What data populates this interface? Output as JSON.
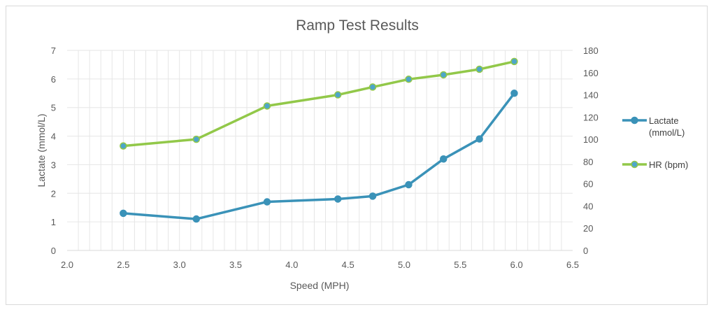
{
  "chart_data": {
    "type": "line",
    "title": "Ramp Test Results",
    "xlabel": "Speed (MPH)",
    "ylabel": "Lactate (mmol/L)",
    "y2label": "",
    "xlim": [
      2.0,
      6.5
    ],
    "ylim": [
      0,
      7
    ],
    "y2lim": [
      0,
      180
    ],
    "x_ticks": [
      "2.0",
      "2.5",
      "3.0",
      "3.5",
      "4.0",
      "4.5",
      "5.0",
      "5.5",
      "6.0",
      "6.5"
    ],
    "y_ticks": [
      "0",
      "1",
      "2",
      "3",
      "4",
      "5",
      "6",
      "7"
    ],
    "y2_ticks": [
      "0",
      "20",
      "40",
      "60",
      "80",
      "100",
      "120",
      "140",
      "160",
      "180"
    ],
    "grid": true,
    "legend_position": "right",
    "series": [
      {
        "name": "Lactate (mmol/L)",
        "legend_lines": [
          "Lactate",
          "(mmol/L)"
        ],
        "axis": "left",
        "color": "#3a92b8",
        "marker_fill": "#3a92b8",
        "x": [
          2.5,
          3.15,
          3.78,
          4.41,
          4.72,
          5.04,
          5.35,
          5.67,
          5.98
        ],
        "y": [
          1.3,
          1.1,
          1.7,
          1.8,
          1.9,
          2.3,
          3.2,
          3.9,
          5.5
        ]
      },
      {
        "name": "HR (bpm)",
        "legend_lines": [
          "HR (bpm)"
        ],
        "axis": "right",
        "color": "#92c849",
        "marker_fill": "#4ea6c9",
        "x": [
          2.5,
          3.15,
          3.78,
          4.41,
          4.72,
          5.04,
          5.35,
          5.67,
          5.98
        ],
        "y": [
          94,
          100,
          130,
          140,
          147,
          154,
          158,
          163,
          170
        ]
      }
    ]
  }
}
